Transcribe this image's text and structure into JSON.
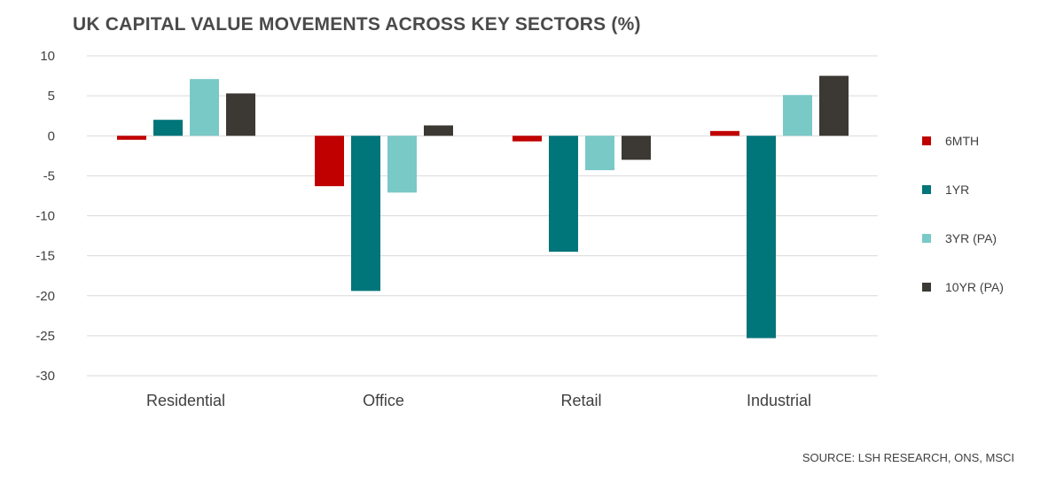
{
  "chart_data": {
    "type": "bar",
    "title": "UK CAPITAL VALUE MOVEMENTS ACROSS KEY SECTORS (%)",
    "categories": [
      "Residential",
      "Office",
      "Retail",
      "Industrial"
    ],
    "series": [
      {
        "name": "6MTH",
        "color": "#c00000",
        "values": [
          -0.5,
          -6.3,
          -0.7,
          0.6
        ]
      },
      {
        "name": "1YR",
        "color": "#00757a",
        "values": [
          2.0,
          -19.4,
          -14.5,
          -25.3
        ]
      },
      {
        "name": "3YR (PA)",
        "color": "#79c9c7",
        "values": [
          7.1,
          -7.1,
          -4.3,
          5.1
        ]
      },
      {
        "name": "10YR (PA)",
        "color": "#3c3833",
        "values": [
          5.3,
          1.3,
          -3.0,
          7.5
        ]
      }
    ],
    "yticks": [
      10,
      5,
      0,
      -5,
      -10,
      -15,
      -20,
      -25,
      -30
    ],
    "ylim": [
      -30,
      10
    ],
    "xlabel": "",
    "ylabel": "",
    "grid": true,
    "legend": "right"
  },
  "source": "SOURCE: LSH RESEARCH, ONS, MSCI"
}
